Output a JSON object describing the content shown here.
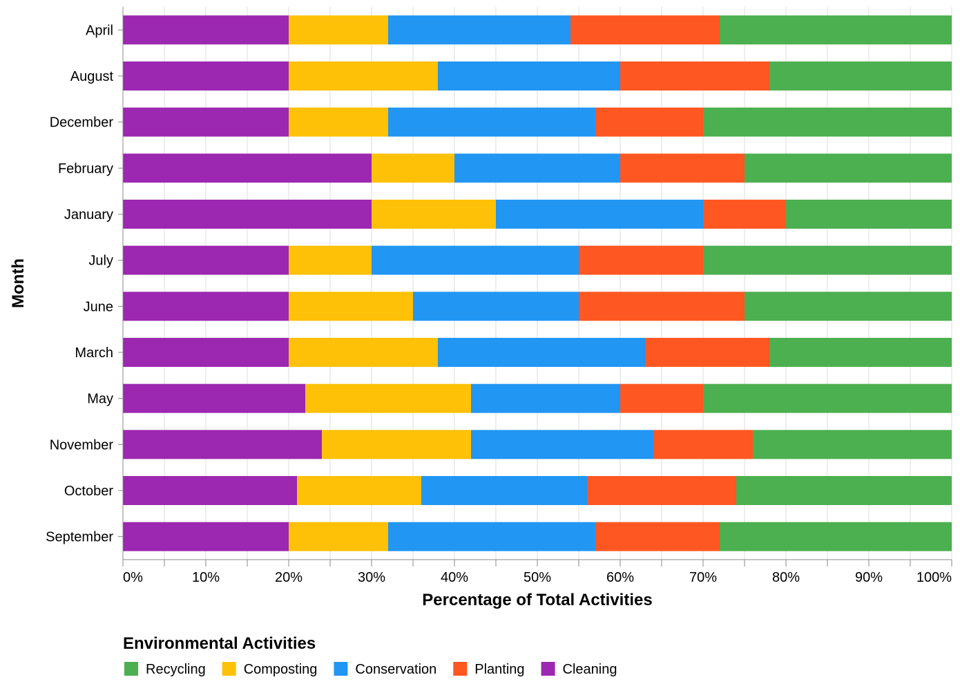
{
  "chart_data": {
    "type": "bar",
    "orientation": "horizontal",
    "stacked": true,
    "normalized": true,
    "xlabel": "Percentage of Total Activities",
    "ylabel": "Month",
    "xlim": [
      0,
      100
    ],
    "x_ticks": [
      "0%",
      "10%",
      "20%",
      "30%",
      "40%",
      "50%",
      "60%",
      "70%",
      "80%",
      "90%",
      "100%"
    ],
    "grid": true,
    "legend_position": "bottom-left",
    "legend_title": "Environmental Activities",
    "categories": [
      "April",
      "August",
      "December",
      "February",
      "January",
      "July",
      "June",
      "March",
      "May",
      "November",
      "October",
      "September"
    ],
    "series": [
      {
        "name": "Cleaning",
        "color": "#9C27B0",
        "values": [
          20,
          20,
          20,
          30,
          30,
          20,
          20,
          20,
          22,
          24,
          21,
          20
        ]
      },
      {
        "name": "Composting",
        "color": "#FFC107",
        "values": [
          12,
          18,
          12,
          10,
          15,
          10,
          15,
          18,
          20,
          18,
          15,
          12
        ]
      },
      {
        "name": "Conservation",
        "color": "#2196F3",
        "values": [
          22,
          22,
          25,
          20,
          25,
          25,
          20,
          25,
          18,
          22,
          20,
          25
        ]
      },
      {
        "name": "Planting",
        "color": "#FF5722",
        "values": [
          18,
          18,
          13,
          15,
          10,
          15,
          20,
          15,
          10,
          12,
          18,
          15
        ]
      },
      {
        "name": "Recycling",
        "color": "#4CAF50",
        "values": [
          28,
          22,
          30,
          25,
          20,
          30,
          25,
          22,
          30,
          24,
          26,
          28
        ]
      }
    ],
    "legend_order": [
      "Recycling",
      "Composting",
      "Conservation",
      "Planting",
      "Cleaning"
    ]
  }
}
